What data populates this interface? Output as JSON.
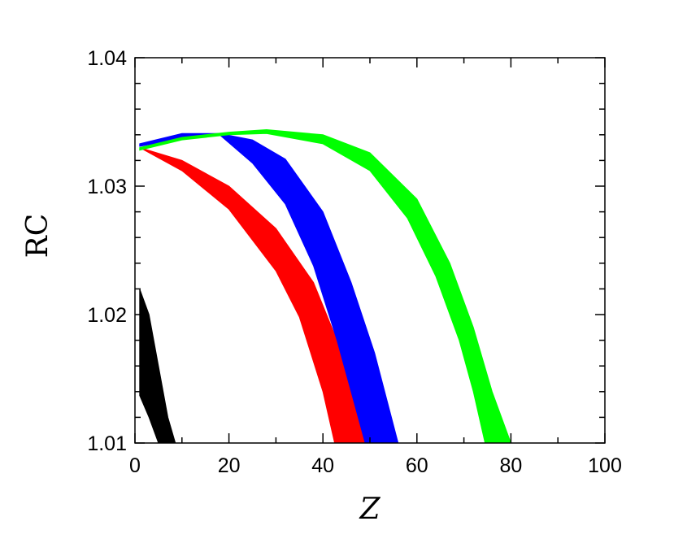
{
  "chart_data": {
    "type": "area",
    "title": "",
    "xlabel": "Z",
    "ylabel": "RC",
    "xlim": [
      0,
      100
    ],
    "ylim": [
      1.01,
      1.04
    ],
    "xticks": [
      0,
      20,
      40,
      60,
      80,
      100
    ],
    "xtick_labels": [
      "0",
      "20",
      "40",
      "60",
      "80",
      "100"
    ],
    "yticks": [
      1.01,
      1.02,
      1.03,
      1.04
    ],
    "ytick_labels": [
      "1.01",
      "1.02",
      "1.03",
      "1.04"
    ],
    "grid": false,
    "legend": "none",
    "series": [
      {
        "color": "#000000",
        "upper": [
          [
            1,
            1.022
          ],
          [
            3,
            1.02
          ],
          [
            5,
            1.016
          ],
          [
            7,
            1.012
          ],
          [
            8.6,
            1.01
          ]
        ],
        "lower": [
          [
            1,
            1.0137
          ],
          [
            3,
            1.012
          ],
          [
            5,
            1.01
          ]
        ]
      },
      {
        "color": "#ff0000",
        "upper": [
          [
            1,
            1.033
          ],
          [
            10,
            1.032
          ],
          [
            20,
            1.03
          ],
          [
            30,
            1.0267
          ],
          [
            38,
            1.0225
          ],
          [
            43,
            1.018
          ],
          [
            47,
            1.013
          ],
          [
            49.5,
            1.01
          ]
        ],
        "lower": [
          [
            1,
            1.033
          ],
          [
            10,
            1.0312
          ],
          [
            20,
            1.0282
          ],
          [
            30,
            1.0234
          ],
          [
            35,
            1.0198
          ],
          [
            40,
            1.014
          ],
          [
            42.5,
            1.01
          ]
        ]
      },
      {
        "color": "#0000ff",
        "upper": [
          [
            1,
            1.0333
          ],
          [
            10,
            1.0341
          ],
          [
            18,
            1.0341
          ],
          [
            25,
            1.0336
          ],
          [
            32,
            1.0321
          ],
          [
            40,
            1.028
          ],
          [
            46,
            1.0225
          ],
          [
            51,
            1.017
          ],
          [
            56,
            1.01
          ]
        ],
        "lower": [
          [
            1,
            1.0331
          ],
          [
            10,
            1.0337
          ],
          [
            18,
            1.034
          ],
          [
            25,
            1.0318
          ],
          [
            32,
            1.0286
          ],
          [
            38,
            1.0238
          ],
          [
            43,
            1.018
          ],
          [
            46,
            1.014
          ],
          [
            49,
            1.01
          ]
        ]
      },
      {
        "color": "#00ff00",
        "upper": [
          [
            1,
            1.033
          ],
          [
            10,
            1.0338
          ],
          [
            20,
            1.0342
          ],
          [
            28,
            1.0344
          ],
          [
            40,
            1.034
          ],
          [
            50,
            1.0326
          ],
          [
            60,
            1.029
          ],
          [
            67,
            1.024
          ],
          [
            72,
            1.019
          ],
          [
            76,
            1.014
          ],
          [
            80,
            1.01
          ]
        ],
        "lower": [
          [
            1,
            1.0328
          ],
          [
            10,
            1.0336
          ],
          [
            20,
            1.034
          ],
          [
            28,
            1.0341
          ],
          [
            40,
            1.0333
          ],
          [
            50,
            1.0312
          ],
          [
            58,
            1.0275
          ],
          [
            64,
            1.023
          ],
          [
            69,
            1.018
          ],
          [
            72,
            1.014
          ],
          [
            74.5,
            1.01
          ]
        ]
      }
    ]
  }
}
